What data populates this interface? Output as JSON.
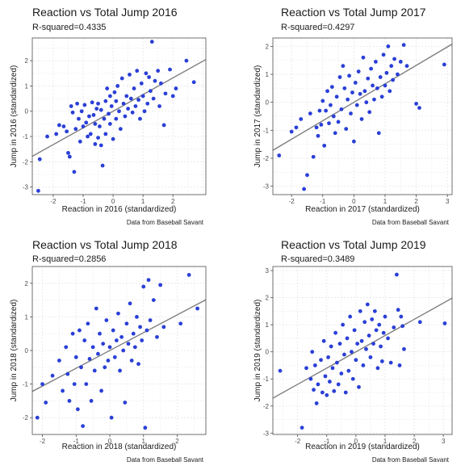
{
  "chart_data": [
    {
      "type": "scatter",
      "title": "Reaction vs Total Jump 2016",
      "subtitle": "R-squared=0.4335",
      "xlabel": "Reaction in 2016 (standardized)",
      "ylabel": "Jump in 2016 (standardized)",
      "caption": "Data from Baseball Savant",
      "xlim": [
        -2.7,
        3.1
      ],
      "ylim": [
        -3.3,
        2.9
      ],
      "xticks": [
        -2,
        -1,
        0,
        1,
        2
      ],
      "yticks": [
        -3,
        -2,
        -1,
        0,
        1,
        2
      ],
      "fit": {
        "intercept": 0.0,
        "slope": 0.66
      },
      "colors": {
        "point": "#2a3fd6",
        "line": "#7f7f7f",
        "grid": "#e5e5e5",
        "border": "#4d4d4d"
      },
      "points": [
        [
          -2.5,
          -3.15
        ],
        [
          -2.45,
          -1.9
        ],
        [
          -2.2,
          -1.0
        ],
        [
          -1.9,
          -0.9
        ],
        [
          -1.8,
          -0.55
        ],
        [
          -1.65,
          -0.6
        ],
        [
          -1.55,
          -0.8
        ],
        [
          -1.5,
          -1.65
        ],
        [
          -1.45,
          -1.8
        ],
        [
          -1.4,
          0.2
        ],
        [
          -1.35,
          -0.05
        ],
        [
          -1.3,
          -2.4
        ],
        [
          -1.25,
          -0.7
        ],
        [
          -1.2,
          0.3
        ],
        [
          -1.15,
          -0.3
        ],
        [
          -1.1,
          -1.2
        ],
        [
          -1.05,
          0.0
        ],
        [
          -1.0,
          -0.6
        ],
        [
          -0.95,
          0.25
        ],
        [
          -0.9,
          -0.45
        ],
        [
          -0.85,
          -1.0
        ],
        [
          -0.8,
          -0.2
        ],
        [
          -0.75,
          -0.9
        ],
        [
          -0.7,
          0.35
        ],
        [
          -0.65,
          -0.15
        ],
        [
          -0.6,
          -1.3
        ],
        [
          -0.6,
          -0.5
        ],
        [
          -0.55,
          0.1
        ],
        [
          -0.5,
          -1.05
        ],
        [
          -0.5,
          0.3
        ],
        [
          -0.45,
          -0.6
        ],
        [
          -0.4,
          -1.35
        ],
        [
          -0.4,
          0.05
        ],
        [
          -0.35,
          -2.15
        ],
        [
          -0.3,
          -0.3
        ],
        [
          -0.25,
          0.4
        ],
        [
          -0.25,
          -0.9
        ],
        [
          -0.2,
          0.9
        ],
        [
          -0.15,
          -0.1
        ],
        [
          -0.1,
          0.6
        ],
        [
          -0.1,
          -0.5
        ],
        [
          -0.05,
          0.2
        ],
        [
          0.0,
          -1.1
        ],
        [
          0.05,
          0.75
        ],
        [
          0.1,
          -0.3
        ],
        [
          0.1,
          0.4
        ],
        [
          0.15,
          1.0
        ],
        [
          0.2,
          0.0
        ],
        [
          0.25,
          -0.7
        ],
        [
          0.3,
          1.3
        ],
        [
          0.35,
          0.3
        ],
        [
          0.4,
          -0.2
        ],
        [
          0.45,
          0.6
        ],
        [
          0.5,
          0.1
        ],
        [
          0.55,
          1.45
        ],
        [
          0.6,
          0.5
        ],
        [
          0.65,
          -0.05
        ],
        [
          0.7,
          0.9
        ],
        [
          0.75,
          0.2
        ],
        [
          0.8,
          1.6
        ],
        [
          0.85,
          0.45
        ],
        [
          0.9,
          -0.3
        ],
        [
          0.95,
          1.1
        ],
        [
          1.0,
          0.6
        ],
        [
          1.05,
          0.0
        ],
        [
          1.1,
          1.5
        ],
        [
          1.15,
          0.3
        ],
        [
          1.2,
          1.35
        ],
        [
          1.25,
          0.8
        ],
        [
          1.3,
          2.75
        ],
        [
          1.35,
          0.5
        ],
        [
          1.4,
          1.2
        ],
        [
          1.5,
          1.6
        ],
        [
          1.55,
          0.2
        ],
        [
          1.6,
          1.1
        ],
        [
          1.7,
          -0.55
        ],
        [
          1.75,
          0.7
        ],
        [
          1.9,
          1.65
        ],
        [
          2.0,
          0.6
        ],
        [
          2.1,
          0.9
        ],
        [
          2.45,
          2.0
        ],
        [
          2.7,
          1.15
        ]
      ]
    },
    {
      "type": "scatter",
      "title": "Reaction vs Total Jump 2017",
      "subtitle": "R-squared=0.4297",
      "xlabel": "Reaction in 2017 (standardized)",
      "ylabel": "Jump in 2017 (standardized)",
      "caption": "Data from Baseball Savant",
      "xlim": [
        -2.6,
        3.15
      ],
      "ylim": [
        -3.3,
        2.3
      ],
      "xticks": [
        -2,
        -1,
        0,
        1,
        2,
        3
      ],
      "yticks": [
        -3,
        -2,
        -1,
        0,
        1,
        2
      ],
      "fit": {
        "intercept": 0.0,
        "slope": 0.66
      },
      "colors": {
        "point": "#2a3fd6",
        "line": "#7f7f7f",
        "grid": "#e5e5e5",
        "border": "#4d4d4d"
      },
      "points": [
        [
          -2.4,
          -1.9
        ],
        [
          -2.0,
          -1.05
        ],
        [
          -1.85,
          -0.9
        ],
        [
          -1.7,
          -0.6
        ],
        [
          -1.6,
          -3.1
        ],
        [
          -1.5,
          -2.6
        ],
        [
          -1.4,
          -0.4
        ],
        [
          -1.3,
          -1.95
        ],
        [
          -1.2,
          -0.9
        ],
        [
          -1.15,
          -1.2
        ],
        [
          -1.1,
          -0.3
        ],
        [
          -1.05,
          -0.8
        ],
        [
          -1.0,
          0.05
        ],
        [
          -0.95,
          -1.55
        ],
        [
          -0.9,
          -0.3
        ],
        [
          -0.85,
          0.4
        ],
        [
          -0.8,
          -0.75
        ],
        [
          -0.75,
          -0.1
        ],
        [
          -0.7,
          0.55
        ],
        [
          -0.65,
          -0.5
        ],
        [
          -0.6,
          -1.1
        ],
        [
          -0.55,
          0.2
        ],
        [
          -0.5,
          -0.7
        ],
        [
          -0.45,
          0.9
        ],
        [
          -0.4,
          -0.25
        ],
        [
          -0.35,
          1.3
        ],
        [
          -0.3,
          0.5
        ],
        [
          -0.25,
          -0.95
        ],
        [
          -0.2,
          0.1
        ],
        [
          -0.15,
          0.95
        ],
        [
          -0.1,
          -0.4
        ],
        [
          -0.05,
          0.35
        ],
        [
          0.0,
          -1.4
        ],
        [
          0.05,
          0.7
        ],
        [
          0.1,
          -0.1
        ],
        [
          0.15,
          1.1
        ],
        [
          0.2,
          0.3
        ],
        [
          0.25,
          -0.6
        ],
        [
          0.3,
          1.6
        ],
        [
          0.35,
          0.4
        ],
        [
          0.4,
          0.0
        ],
        [
          0.45,
          0.85
        ],
        [
          0.5,
          -0.35
        ],
        [
          0.55,
          1.2
        ],
        [
          0.6,
          0.6
        ],
        [
          0.65,
          0.1
        ],
        [
          0.7,
          1.45
        ],
        [
          0.75,
          0.5
        ],
        [
          0.8,
          -1.1
        ],
        [
          0.85,
          0.9
        ],
        [
          0.9,
          0.2
        ],
        [
          0.95,
          1.7
        ],
        [
          1.0,
          0.6
        ],
        [
          1.05,
          1.05
        ],
        [
          1.1,
          2.0
        ],
        [
          1.15,
          0.4
        ],
        [
          1.2,
          1.3
        ],
        [
          1.25,
          0.8
        ],
        [
          1.3,
          1.55
        ],
        [
          1.4,
          1.0
        ],
        [
          1.5,
          1.45
        ],
        [
          1.6,
          2.05
        ],
        [
          1.7,
          1.3
        ],
        [
          2.0,
          -0.05
        ],
        [
          2.1,
          -0.2
        ],
        [
          2.9,
          1.35
        ]
      ]
    },
    {
      "type": "scatter",
      "title": "Reaction vs Total Jump 2018",
      "subtitle": "R-squared=0.2856",
      "xlabel": "Reaction in 2018 (standardized)",
      "ylabel": "Jump in 2018 (standardized)",
      "caption": "Data from Baseball Savant",
      "xlim": [
        -2.3,
        2.85
      ],
      "ylim": [
        -2.5,
        2.5
      ],
      "xticks": [
        -2,
        -1,
        0,
        1,
        2
      ],
      "yticks": [
        -2,
        -1,
        0,
        1,
        2
      ],
      "fit": {
        "intercept": 0.0,
        "slope": 0.53
      },
      "colors": {
        "point": "#2a3fd6",
        "line": "#7f7f7f",
        "grid": "#e5e5e5",
        "border": "#4d4d4d"
      },
      "points": [
        [
          -2.15,
          -2.0
        ],
        [
          -2.0,
          -1.0
        ],
        [
          -1.9,
          -1.55
        ],
        [
          -1.7,
          -0.75
        ],
        [
          -1.5,
          -0.3
        ],
        [
          -1.4,
          -1.2
        ],
        [
          -1.3,
          0.1
        ],
        [
          -1.25,
          -0.7
        ],
        [
          -1.2,
          -1.5
        ],
        [
          -1.1,
          0.5
        ],
        [
          -1.05,
          -1.0
        ],
        [
          -1.0,
          -0.2
        ],
        [
          -0.95,
          -1.75
        ],
        [
          -0.9,
          0.6
        ],
        [
          -0.85,
          -0.5
        ],
        [
          -0.8,
          -2.25
        ],
        [
          -0.75,
          0.3
        ],
        [
          -0.7,
          -1.0
        ],
        [
          -0.65,
          0.8
        ],
        [
          -0.6,
          -0.25
        ],
        [
          -0.55,
          -1.5
        ],
        [
          -0.5,
          0.1
        ],
        [
          -0.45,
          -0.6
        ],
        [
          -0.4,
          1.25
        ],
        [
          -0.35,
          -0.1
        ],
        [
          -0.3,
          0.5
        ],
        [
          -0.25,
          -1.2
        ],
        [
          -0.2,
          0.2
        ],
        [
          -0.15,
          -0.5
        ],
        [
          -0.1,
          0.9
        ],
        [
          -0.05,
          -0.3
        ],
        [
          0.0,
          0.1
        ],
        [
          0.05,
          -2.0
        ],
        [
          0.1,
          0.6
        ],
        [
          0.15,
          -0.2
        ],
        [
          0.2,
          0.3
        ],
        [
          0.25,
          1.1
        ],
        [
          0.3,
          -0.6
        ],
        [
          0.35,
          0.4
        ],
        [
          0.4,
          0.0
        ],
        [
          0.45,
          -1.55
        ],
        [
          0.5,
          0.8
        ],
        [
          0.55,
          0.2
        ],
        [
          0.6,
          1.4
        ],
        [
          0.65,
          -0.3
        ],
        [
          0.7,
          0.5
        ],
        [
          0.75,
          0.1
        ],
        [
          0.8,
          1.0
        ],
        [
          0.85,
          -0.4
        ],
        [
          0.9,
          0.7
        ],
        [
          0.95,
          0.3
        ],
        [
          1.0,
          1.9
        ],
        [
          1.05,
          -2.3
        ],
        [
          1.1,
          0.6
        ],
        [
          1.15,
          2.1
        ],
        [
          1.2,
          0.9
        ],
        [
          1.3,
          1.5
        ],
        [
          1.4,
          0.4
        ],
        [
          1.5,
          1.95
        ],
        [
          1.6,
          0.7
        ],
        [
          2.1,
          0.8
        ],
        [
          2.35,
          2.25
        ],
        [
          2.6,
          1.25
        ]
      ]
    },
    {
      "type": "scatter",
      "title": "Reaction vs Total Jump 2019",
      "subtitle": "R-squared=0.3489",
      "xlabel": "Reaction in 2019 (standardized)",
      "ylabel": "Jump in 2019 (standardized)",
      "caption": "Data from Baseball Savant",
      "xlim": [
        -2.85,
        3.3
      ],
      "ylim": [
        -3.05,
        3.15
      ],
      "xticks": [
        -2,
        -1,
        0,
        1,
        2,
        3
      ],
      "yticks": [
        -3,
        -2,
        -1,
        0,
        1,
        2,
        3
      ],
      "fit": {
        "intercept": 0.0,
        "slope": 0.6
      },
      "colors": {
        "point": "#2a3fd6",
        "line": "#7f7f7f",
        "grid": "#e5e5e5",
        "border": "#4d4d4d"
      },
      "points": [
        [
          -2.6,
          -0.7
        ],
        [
          -1.85,
          -2.8
        ],
        [
          -1.7,
          -0.6
        ],
        [
          -1.55,
          -1.0
        ],
        [
          -1.5,
          0.0
        ],
        [
          -1.45,
          -1.4
        ],
        [
          -1.4,
          -0.5
        ],
        [
          -1.35,
          -1.9
        ],
        [
          -1.3,
          -1.2
        ],
        [
          -1.2,
          -0.3
        ],
        [
          -1.15,
          -1.5
        ],
        [
          -1.1,
          0.4
        ],
        [
          -1.05,
          -0.9
        ],
        [
          -1.0,
          -1.6
        ],
        [
          -0.95,
          -0.2
        ],
        [
          -0.9,
          -1.1
        ],
        [
          -0.85,
          0.2
        ],
        [
          -0.8,
          -0.6
        ],
        [
          -0.75,
          -1.45
        ],
        [
          -0.7,
          0.7
        ],
        [
          -0.65,
          -0.4
        ],
        [
          -0.6,
          -1.2
        ],
        [
          -0.55,
          0.3
        ],
        [
          -0.5,
          -0.8
        ],
        [
          -0.45,
          1.0
        ],
        [
          -0.4,
          -0.1
        ],
        [
          -0.35,
          -1.5
        ],
        [
          -0.3,
          0.5
        ],
        [
          -0.25,
          -0.7
        ],
        [
          -0.2,
          1.3
        ],
        [
          -0.15,
          0.0
        ],
        [
          -0.1,
          -1.0
        ],
        [
          -0.05,
          0.8
        ],
        [
          0.0,
          -0.3
        ],
        [
          0.05,
          0.3
        ],
        [
          0.1,
          -1.3
        ],
        [
          0.15,
          1.5
        ],
        [
          0.2,
          0.4
        ],
        [
          0.25,
          -0.5
        ],
        [
          0.3,
          1.1
        ],
        [
          0.35,
          0.1
        ],
        [
          0.4,
          1.75
        ],
        [
          0.45,
          0.6
        ],
        [
          0.5,
          -0.2
        ],
        [
          0.55,
          1.2
        ],
        [
          0.6,
          0.3
        ],
        [
          0.65,
          1.5
        ],
        [
          0.7,
          0.8
        ],
        [
          0.75,
          -0.6
        ],
        [
          0.8,
          1.0
        ],
        [
          0.85,
          0.2
        ],
        [
          0.9,
          -0.35
        ],
        [
          0.95,
          0.7
        ],
        [
          1.0,
          1.3
        ],
        [
          1.1,
          0.5
        ],
        [
          1.2,
          -0.4
        ],
        [
          1.3,
          0.9
        ],
        [
          1.4,
          2.85
        ],
        [
          1.45,
          1.55
        ],
        [
          1.5,
          -0.5
        ],
        [
          1.55,
          1.3
        ],
        [
          1.6,
          0.95
        ],
        [
          1.65,
          0.1
        ],
        [
          2.2,
          1.1
        ],
        [
          3.05,
          1.05
        ]
      ]
    }
  ]
}
